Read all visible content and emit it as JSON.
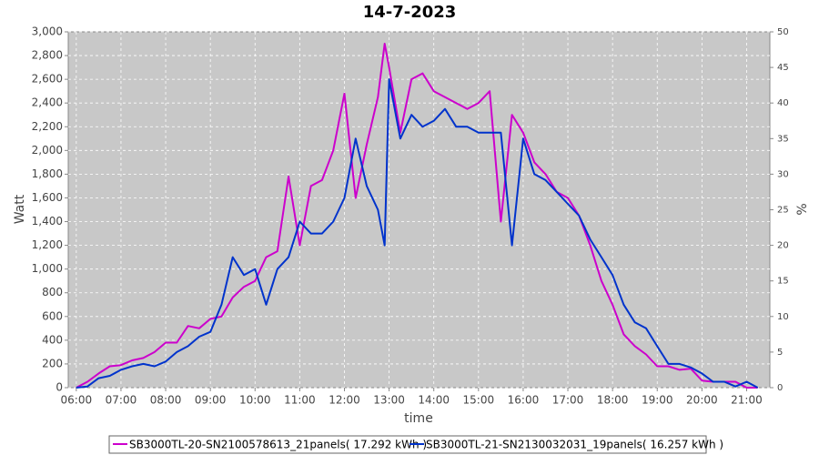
{
  "chart_data": {
    "type": "line",
    "title": "14-7-2023",
    "x_label": "time",
    "y_label": "Watt",
    "y2_label": "%",
    "x": [
      6.0,
      6.25,
      6.5,
      6.75,
      7.0,
      7.25,
      7.5,
      7.75,
      8.0,
      8.25,
      8.5,
      8.75,
      9.0,
      9.25,
      9.5,
      9.75,
      10.0,
      10.25,
      10.5,
      10.75,
      11.0,
      11.25,
      11.5,
      11.75,
      12.0,
      12.25,
      12.5,
      12.75,
      12.9,
      13.0,
      13.25,
      13.5,
      13.75,
      14.0,
      14.25,
      14.5,
      14.75,
      15.0,
      15.25,
      15.5,
      15.75,
      16.0,
      16.25,
      16.5,
      16.75,
      17.0,
      17.25,
      17.5,
      17.75,
      18.0,
      18.25,
      18.5,
      18.75,
      19.0,
      19.25,
      19.5,
      19.75,
      20.0,
      20.25,
      20.5,
      20.75,
      21.0,
      21.25
    ],
    "series": [
      {
        "name": "SB3000TL-20-SN2100578613_21panels( 17.292 kWh )",
        "color": "#cc00cc",
        "values": [
          0,
          50,
          120,
          180,
          190,
          230,
          250,
          300,
          380,
          380,
          520,
          500,
          580,
          600,
          760,
          850,
          900,
          1100,
          1150,
          1780,
          1200,
          1700,
          1750,
          2000,
          2480,
          1600,
          2050,
          2450,
          2900,
          2700,
          2150,
          2600,
          2650,
          2500,
          2450,
          2400,
          2350,
          2400,
          2500,
          1400,
          2300,
          2150,
          1900,
          1800,
          1650,
          1600,
          1450,
          1200,
          900,
          700,
          450,
          350,
          280,
          180,
          180,
          150,
          160,
          60,
          50,
          50,
          50,
          0,
          0
        ]
      },
      {
        "name": "SB3000TL-21-SN2130032031_19panels( 16.257 kWh )",
        "color": "#0033cc",
        "values": [
          0,
          10,
          80,
          100,
          150,
          180,
          200,
          180,
          220,
          300,
          350,
          430,
          470,
          700,
          1100,
          950,
          1000,
          700,
          1000,
          1100,
          1400,
          1300,
          1300,
          1400,
          1600,
          2100,
          1700,
          1500,
          1200,
          2600,
          2100,
          2300,
          2200,
          2250,
          2350,
          2200,
          2200,
          2150,
          2150,
          2150,
          1200,
          2100,
          1800,
          1750,
          1650,
          1550,
          1450,
          1250,
          1100,
          950,
          700,
          550,
          500,
          350,
          200,
          200,
          170,
          120,
          50,
          50,
          10,
          50,
          0
        ]
      }
    ],
    "xlim": [
      5.82,
      21.52
    ],
    "xticks": [
      {
        "value": 6,
        "label": "06:00"
      },
      {
        "value": 7,
        "label": "07:00"
      },
      {
        "value": 8,
        "label": "08:00"
      },
      {
        "value": 9,
        "label": "09:00"
      },
      {
        "value": 10,
        "label": "10:00"
      },
      {
        "value": 11,
        "label": "11:00"
      },
      {
        "value": 12,
        "label": "12:00"
      },
      {
        "value": 13,
        "label": "13:00"
      },
      {
        "value": 14,
        "label": "14:00"
      },
      {
        "value": 15,
        "label": "15:00"
      },
      {
        "value": 16,
        "label": "16:00"
      },
      {
        "value": 17,
        "label": "17:00"
      },
      {
        "value": 18,
        "label": "18:00"
      },
      {
        "value": 19,
        "label": "19:00"
      },
      {
        "value": 20,
        "label": "20:00"
      },
      {
        "value": 21,
        "label": "21:00"
      }
    ],
    "ylim": [
      0,
      3000
    ],
    "yticks": [
      0,
      200,
      400,
      600,
      800,
      {
        "value": 1000,
        "label": "1,000"
      },
      {
        "value": 1200,
        "label": "1,200"
      },
      {
        "value": 1400,
        "label": "1,400"
      },
      {
        "value": 1600,
        "label": "1,600"
      },
      {
        "value": 1800,
        "label": "1,800"
      },
      {
        "value": 2000,
        "label": "2,000"
      },
      {
        "value": 2200,
        "label": "2,200"
      },
      {
        "value": 2400,
        "label": "2,400"
      },
      {
        "value": 2600,
        "label": "2,600"
      },
      {
        "value": 2800,
        "label": "2,800"
      },
      {
        "value": 3000,
        "label": "3,000"
      }
    ],
    "y2lim": [
      0,
      50
    ],
    "y2ticks": [
      0,
      5,
      10,
      15,
      20,
      25,
      30,
      35,
      40,
      45,
      50
    ],
    "grid": true
  }
}
